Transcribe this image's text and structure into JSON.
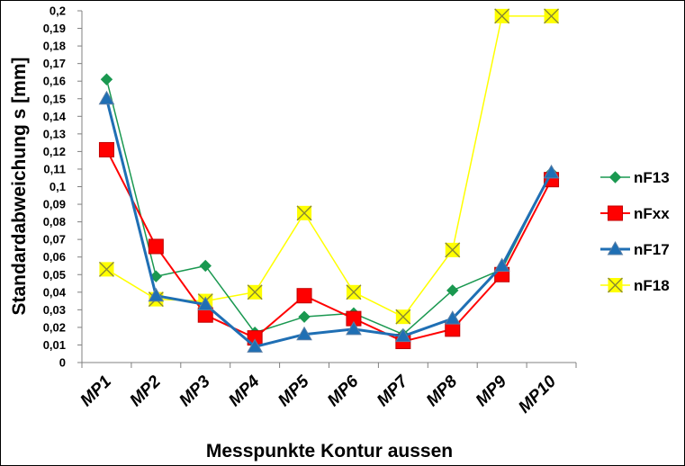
{
  "chart_data": {
    "type": "line",
    "xlabel": "Messpunkte Kontur aussen",
    "ylabel": "Standardabweichung s [mm]",
    "ylim": [
      0,
      0.2
    ],
    "y_step": 0.01,
    "y_tick_labels": [
      "0",
      "0,01",
      "0,02",
      "0,03",
      "0,04",
      "0,05",
      "0,06",
      "0,07",
      "0,08",
      "0,09",
      "0,1",
      "0,11",
      "0,12",
      "0,13",
      "0,14",
      "0,15",
      "0,16",
      "0,17",
      "0,18",
      "0,19",
      "0,2"
    ],
    "grid": false,
    "legend_position": "right",
    "categories": [
      "MP1",
      "MP2",
      "MP3",
      "MP4",
      "MP5",
      "MP6",
      "MP7",
      "MP8",
      "MP9",
      "MP10"
    ],
    "series": [
      {
        "name": "nF13",
        "color": "#1a9850",
        "marker": "diamond",
        "line_width": 1.5,
        "values": [
          0.161,
          0.049,
          0.055,
          0.017,
          0.026,
          0.028,
          0.016,
          0.041,
          0.053,
          0.108
        ]
      },
      {
        "name": "nFxx",
        "color": "#ff0000",
        "marker": "square",
        "line_width": 2,
        "values": [
          0.121,
          0.066,
          0.027,
          0.014,
          0.038,
          0.025,
          0.012,
          0.019,
          0.05,
          0.104
        ]
      },
      {
        "name": "nF17",
        "color": "#1f6fb4",
        "marker": "triangle",
        "line_width": 3,
        "values": [
          0.15,
          0.038,
          0.033,
          0.009,
          0.016,
          0.019,
          0.015,
          0.025,
          0.055,
          0.108
        ]
      },
      {
        "name": "nF18",
        "color": "#ffff00",
        "marker": "x",
        "line_width": 1.5,
        "values": [
          0.053,
          0.036,
          0.035,
          0.04,
          0.085,
          0.04,
          0.026,
          0.064,
          0.197,
          0.197
        ]
      }
    ]
  }
}
